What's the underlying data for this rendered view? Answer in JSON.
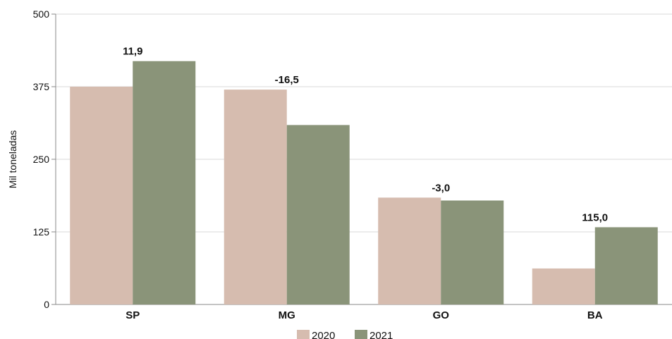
{
  "chart_data": {
    "type": "bar",
    "categories": [
      "SP",
      "MG",
      "GO",
      "BA"
    ],
    "series": [
      {
        "name": "2020",
        "values": [
          375,
          370,
          184,
          62
        ],
        "color": "#d6bcaf"
      },
      {
        "name": "2021",
        "values": [
          419,
          309,
          179,
          133
        ],
        "color": "#8a9479"
      }
    ],
    "annotations": [
      "11,9",
      "-16,5",
      "-3,0",
      "115,0"
    ],
    "ylabel": "Mil toneladas",
    "ylim": [
      0,
      500
    ],
    "yticks": [
      0,
      125,
      250,
      375,
      500
    ],
    "grid": true,
    "legend_position": "bottom"
  }
}
